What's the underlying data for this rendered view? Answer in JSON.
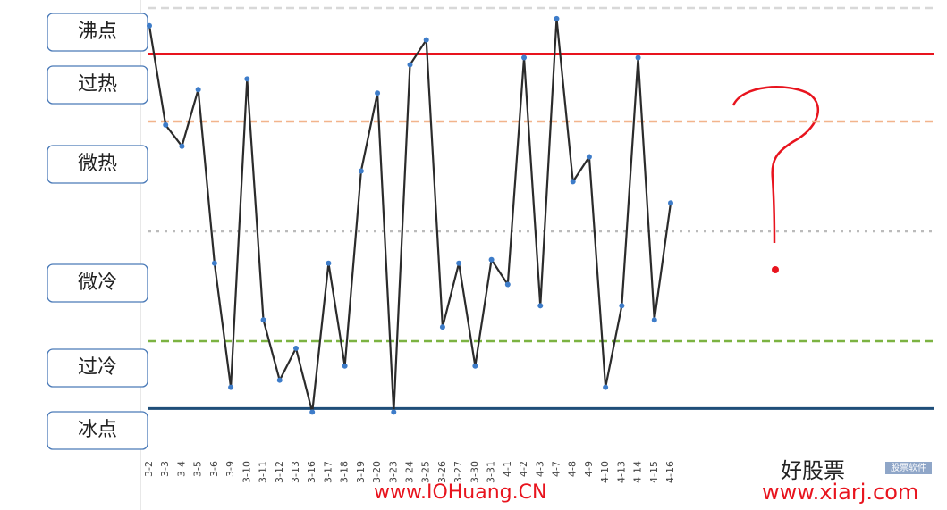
{
  "chart_data": {
    "type": "line",
    "categories": [
      "3-2",
      "3-3",
      "3-4",
      "3-5",
      "3-6",
      "3-9",
      "3-10",
      "3-11",
      "3-12",
      "3-13",
      "3-16",
      "3-17",
      "3-18",
      "3-19",
      "3-20",
      "3-23",
      "3-24",
      "3-25",
      "3-26",
      "3-27",
      "3-30",
      "3-31",
      "4-1",
      "4-2",
      "4-3",
      "4-7",
      "4-8",
      "4-9",
      "4-10",
      "4-13",
      "4-14",
      "4-15",
      "4-16"
    ],
    "values": [
      108,
      80,
      74,
      90,
      41,
      6,
      93,
      25,
      8,
      17,
      -1,
      41,
      12,
      67,
      89,
      -1,
      97,
      104,
      23,
      41,
      12,
      42,
      35,
      99,
      29,
      110,
      64,
      71,
      6,
      29,
      99,
      25,
      58
    ],
    "color": "#2b2b2b",
    "marker_color": "#3d7cc9",
    "ylim": [
      -13,
      115
    ],
    "reference_lines": [
      {
        "value": 113,
        "color": "#d8d8d8",
        "style": "dashed"
      },
      {
        "value": 100,
        "color": "#e8141e",
        "style": "solid"
      },
      {
        "value": 81,
        "color": "#f2b48c",
        "style": "dashed"
      },
      {
        "value": 50,
        "color": "#bbbbbb",
        "style": "dotted"
      },
      {
        "value": 19,
        "color": "#7cb342",
        "style": "dashed"
      },
      {
        "value": 0,
        "color": "#1f4e79",
        "style": "solid"
      }
    ],
    "zone_labels": [
      "沸点",
      "过热",
      "微热",
      "微冷",
      "过冷",
      "冰点"
    ],
    "annotations": [
      "www.IOHuang.CN",
      "好股票",
      "www.xiarj.com",
      "股票软件"
    ]
  }
}
